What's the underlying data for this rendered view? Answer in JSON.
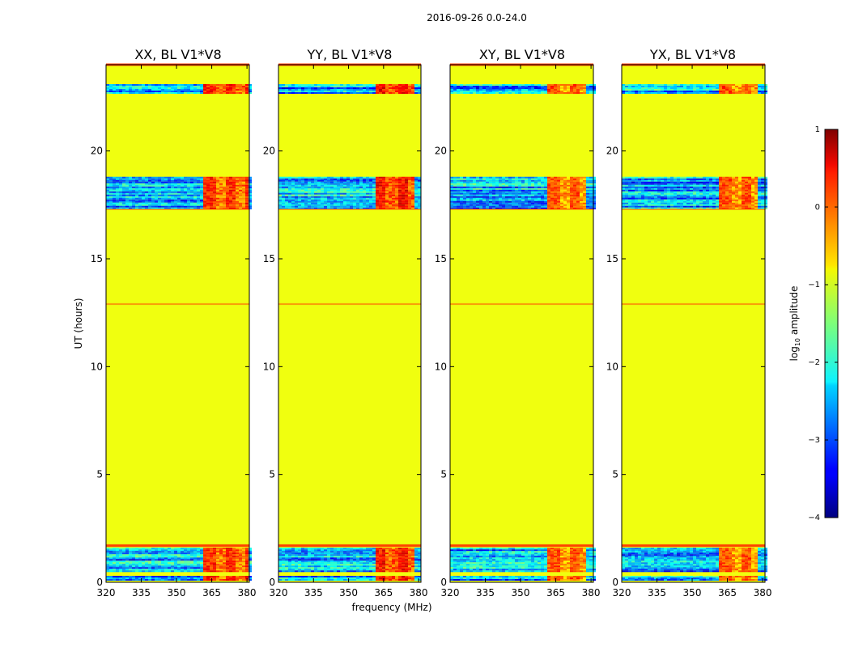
{
  "figure": {
    "suptitle": "2016-09-26 0.0-24.0"
  },
  "chart_data": [
    {
      "type": "heatmap",
      "title": "XX, BL V1*V8",
      "pol": "XX",
      "xlabel": "",
      "ylabel": "UT (hours)",
      "xlim": [
        320,
        381
      ],
      "ylim": [
        0,
        24
      ],
      "xticks": [
        320,
        335,
        350,
        365,
        380
      ],
      "yticks": [
        0,
        5,
        10,
        15,
        20
      ],
      "colormap": "jet",
      "clim": [
        -4,
        1
      ],
      "fill_value": -0.95,
      "flag_lines_ut": [
        1.7,
        12.9,
        17.3,
        24.0
      ],
      "noise_bands_ut": [
        [
          0.1,
          0.3
        ],
        [
          0.5,
          1.6
        ],
        [
          17.35,
          18.8
        ],
        [
          22.7,
          23.1
        ]
      ],
      "rfi_band_mhz": [
        361,
        380
      ],
      "rfi_level": 0.25
    },
    {
      "type": "heatmap",
      "title": "YY, BL V1*V8",
      "pol": "YY",
      "xlabel": "frequency (MHz)",
      "ylabel": "",
      "xlim": [
        320,
        381
      ],
      "ylim": [
        0,
        24
      ],
      "xticks": [
        320,
        335,
        350,
        365,
        380
      ],
      "yticks": [
        0,
        5,
        10,
        15,
        20
      ],
      "colormap": "jet",
      "clim": [
        -4,
        1
      ],
      "fill_value": -0.95,
      "flag_lines_ut": [
        1.7,
        12.9,
        17.3,
        24.0
      ],
      "noise_bands_ut": [
        [
          0.1,
          0.3
        ],
        [
          0.5,
          1.6
        ],
        [
          17.35,
          18.8
        ],
        [
          22.7,
          23.1
        ]
      ],
      "rfi_band_mhz": [
        361,
        377
      ],
      "rfi_level": 0.4
    },
    {
      "type": "heatmap",
      "title": "XY, BL V1*V8",
      "pol": "XY",
      "xlabel": "",
      "ylabel": "",
      "xlim": [
        320,
        381
      ],
      "ylim": [
        0,
        24
      ],
      "xticks": [
        320,
        335,
        350,
        365,
        380
      ],
      "yticks": [
        0,
        5,
        10,
        15,
        20
      ],
      "colormap": "jet",
      "clim": [
        -4,
        1
      ],
      "fill_value": -0.95,
      "flag_lines_ut": [
        1.7,
        12.9,
        17.3,
        24.0
      ],
      "noise_bands_ut": [
        [
          0.1,
          0.3
        ],
        [
          0.5,
          1.6
        ],
        [
          17.35,
          18.8
        ],
        [
          22.7,
          23.1
        ]
      ],
      "rfi_band_mhz": [
        361,
        377
      ],
      "rfi_level": 0.05
    },
    {
      "type": "heatmap",
      "title": "YX, BL V1*V8",
      "pol": "YX",
      "xlabel": "",
      "ylabel": "",
      "xlim": [
        320,
        381
      ],
      "ylim": [
        0,
        24
      ],
      "xticks": [
        320,
        335,
        350,
        365,
        380
      ],
      "yticks": [
        0,
        5,
        10,
        15,
        20
      ],
      "colormap": "jet",
      "clim": [
        -4,
        1
      ],
      "fill_value": -0.95,
      "flag_lines_ut": [
        1.7,
        12.9,
        17.3,
        24.0
      ],
      "noise_bands_ut": [
        [
          0.1,
          0.3
        ],
        [
          0.5,
          1.6
        ],
        [
          17.35,
          18.8
        ],
        [
          22.7,
          23.1
        ]
      ],
      "rfi_band_mhz": [
        361,
        377
      ],
      "rfi_level": 0.05
    }
  ],
  "colorbar": {
    "label": "log10 amplitude",
    "label_main": "log",
    "label_sub": "10",
    "label_rest": " amplitude",
    "ticks": [
      1,
      0,
      -1,
      -2,
      -3,
      -4
    ],
    "tick_labels": [
      "1",
      "0",
      "−1",
      "−2",
      "−3",
      "−4"
    ],
    "colormap": "jet",
    "range": [
      -4,
      1
    ]
  },
  "colors": {
    "fill": "#98ff5f",
    "axis": "#000000",
    "background": "#ffffff"
  }
}
